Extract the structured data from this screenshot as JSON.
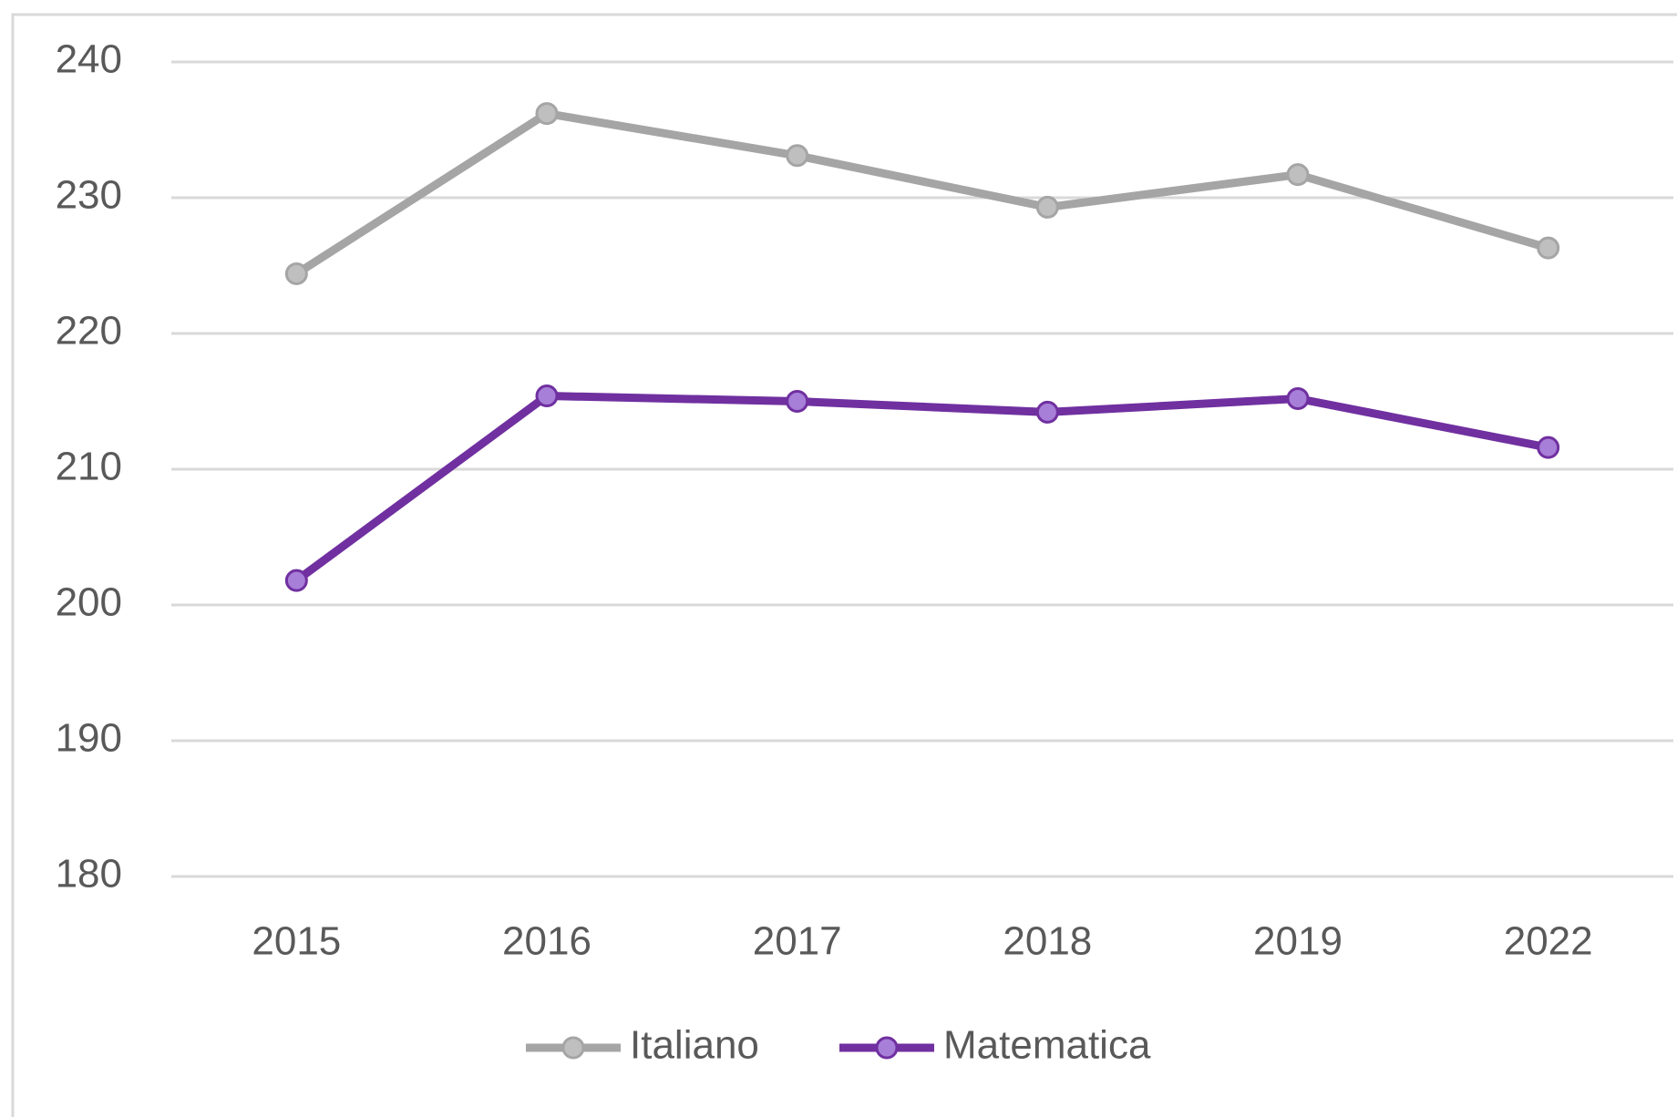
{
  "chart_data": {
    "type": "line",
    "categories": [
      "2015",
      "2016",
      "2017",
      "2018",
      "2019",
      "2022"
    ],
    "series": [
      {
        "name": "Italiano",
        "color": "#a5a5a5",
        "marker_color": "#bfbfbf",
        "values": [
          224.4,
          236.2,
          233.1,
          229.3,
          231.7,
          226.3
        ]
      },
      {
        "name": "Matematica",
        "color": "#7030a0",
        "marker_color": "#a77fd8",
        "values": [
          201.8,
          215.4,
          215.0,
          214.2,
          215.2,
          211.6
        ]
      }
    ],
    "ylim": [
      180,
      240
    ],
    "yticks": [
      180,
      190,
      200,
      210,
      220,
      230,
      240
    ],
    "grid": true,
    "legend": "bottom"
  }
}
